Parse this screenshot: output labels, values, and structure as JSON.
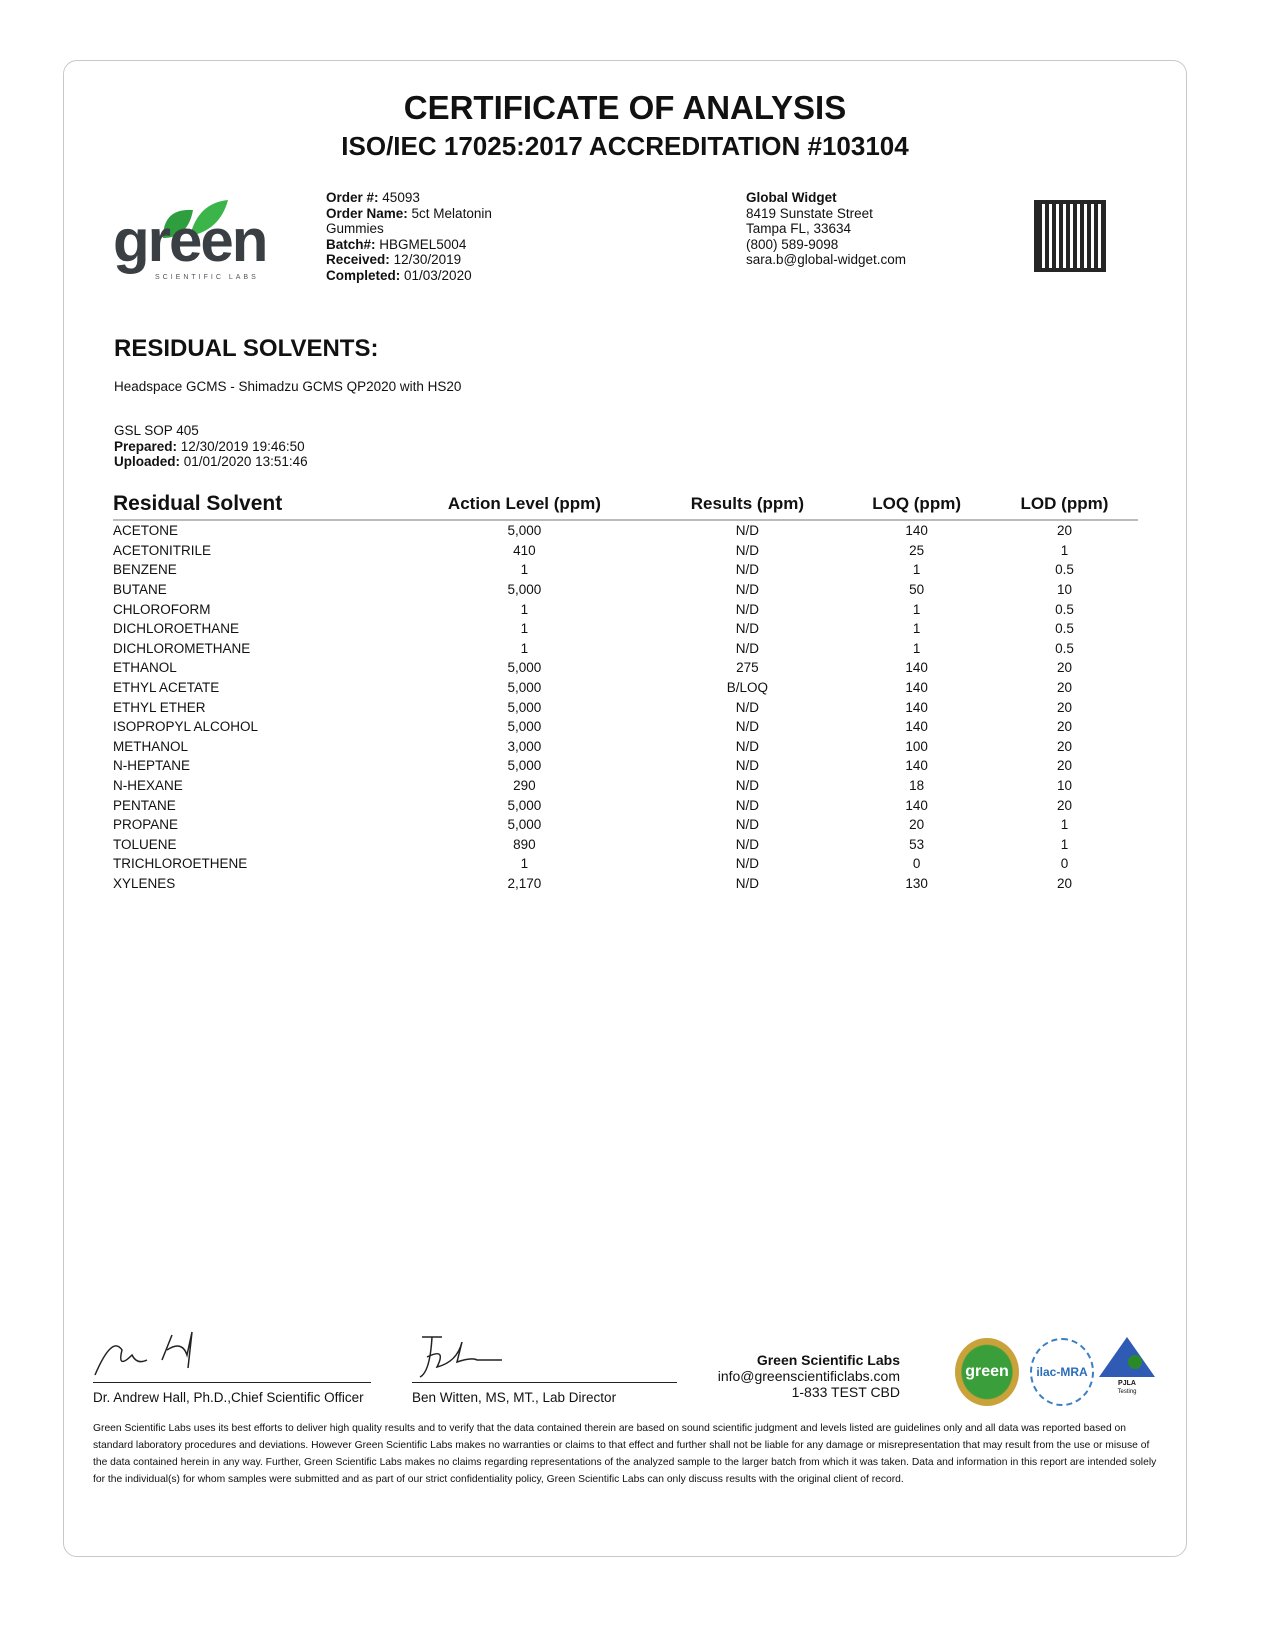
{
  "header": {
    "title": "CERTIFICATE OF ANALYSIS",
    "subtitle": "ISO/IEC 17025:2017 ACCREDITATION #103104"
  },
  "logo": {
    "text": "green",
    "tagline": "SCIENTIFIC LABS",
    "brand_color": "#2e9e3f"
  },
  "order": {
    "order_no_label": "Order #:",
    "order_no": "45093",
    "order_name_label": "Order Name:",
    "order_name": "5ct Melatonin",
    "order_name_2": "Gummies",
    "batch_label": "Batch#:",
    "batch": "HBGMEL5004",
    "received_label": "Received:",
    "received": "12/30/2019",
    "completed_label": "Completed:",
    "completed": "01/03/2020"
  },
  "client": {
    "name": "Global Widget",
    "street": "8419 Sunstate Street",
    "city": "Tampa FL, 33634",
    "phone": "(800) 589-9098",
    "email": "sara.b@global-widget.com"
  },
  "section": {
    "title": "RESIDUAL SOLVENTS:",
    "method": "Headspace GCMS - Shimadzu GCMS QP2020 with HS20",
    "sop": "GSL SOP 405",
    "prepared_label": "Prepared:",
    "prepared": "12/30/2019 19:46:50",
    "uploaded_label": "Uploaded:",
    "uploaded": "01/01/2020 13:51:46"
  },
  "table": {
    "headers": [
      "Residual Solvent",
      "Action Level (ppm)",
      "Results (ppm)",
      "LOQ (ppm)",
      "LOD (ppm)"
    ],
    "rows": [
      [
        "ACETONE",
        "5,000",
        "N/D",
        "140",
        "20"
      ],
      [
        "ACETONITRILE",
        "410",
        "N/D",
        "25",
        "1"
      ],
      [
        "BENZENE",
        "1",
        "N/D",
        "1",
        "0.5"
      ],
      [
        "BUTANE",
        "5,000",
        "N/D",
        "50",
        "10"
      ],
      [
        "CHLOROFORM",
        "1",
        "N/D",
        "1",
        "0.5"
      ],
      [
        "DICHLOROETHANE",
        "1",
        "N/D",
        "1",
        "0.5"
      ],
      [
        "DICHLOROMETHANE",
        "1",
        "N/D",
        "1",
        "0.5"
      ],
      [
        "ETHANOL",
        "5,000",
        "275",
        "140",
        "20"
      ],
      [
        "ETHYL ACETATE",
        "5,000",
        "B/LOQ",
        "140",
        "20"
      ],
      [
        "ETHYL ETHER",
        "5,000",
        "N/D",
        "140",
        "20"
      ],
      [
        "ISOPROPYL ALCOHOL",
        "5,000",
        "N/D",
        "140",
        "20"
      ],
      [
        "METHANOL",
        "3,000",
        "N/D",
        "100",
        "20"
      ],
      [
        "N-HEPTANE",
        "5,000",
        "N/D",
        "140",
        "20"
      ],
      [
        "N-HEXANE",
        "290",
        "N/D",
        "18",
        "10"
      ],
      [
        "PENTANE",
        "5,000",
        "N/D",
        "140",
        "20"
      ],
      [
        "PROPANE",
        "5,000",
        "N/D",
        "20",
        "1"
      ],
      [
        "TOLUENE",
        "890",
        "N/D",
        "53",
        "1"
      ],
      [
        "TRICHLOROETHENE",
        "1",
        "N/D",
        "0",
        "0"
      ],
      [
        "XYLENES",
        "2,170",
        "N/D",
        "130",
        "20"
      ]
    ]
  },
  "signatures": [
    {
      "name": "Dr. Andrew Hall, Ph.D.,Chief Scientific Officer"
    },
    {
      "name": "Ben Witten, MS, MT., Lab Director"
    }
  ],
  "lab": {
    "name": "Green Scientific Labs",
    "email": "info@greenscientificlabs.com",
    "phone": "1-833 TEST CBD"
  },
  "badges": {
    "green_seal": "green",
    "ilac": "ilac-MRA",
    "pjla": "PJLA",
    "pjla_sub": "Testing"
  },
  "disclaimer": "Green Scientific Labs uses its best efforts to deliver high quality results and to verify that the data contained therein are based on sound scientific judgment and levels listed are guidelines only and all data was reported based on standard laboratory procedures and deviations. However Green Scientific Labs makes no warranties or claims to that effect and further shall not be liable for any damage or misrepresentation that may result from the use or misuse of the data contained herein in any way. Further, Green Scientific Labs makes no claims regarding representations of the analyzed sample to the larger batch from which it was taken. Data and information in this report are intended solely for the individual(s) for whom samples were submitted and as part of our strict confidentiality policy, Green Scientific Labs can only discuss results with the original client of record."
}
